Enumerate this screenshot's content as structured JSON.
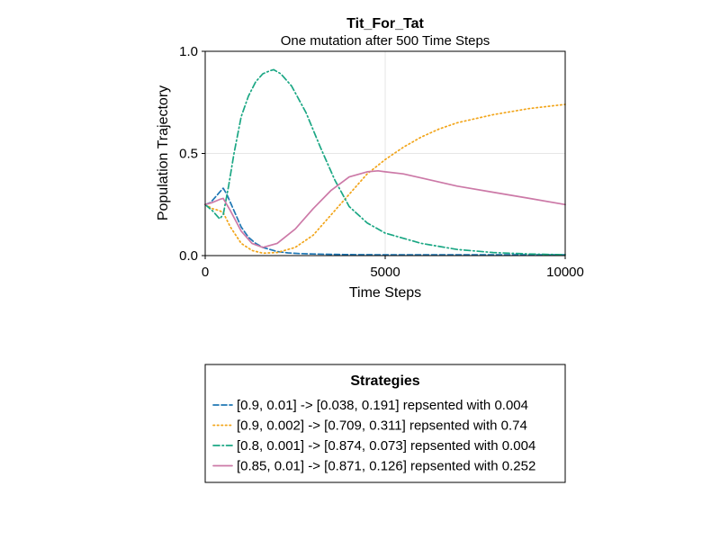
{
  "chart_data": {
    "type": "line",
    "title": "Tit_For_Tat",
    "subtitle": "One mutation after 500 Time Steps",
    "xlabel": "Time Steps",
    "ylabel": "Population Trajectory",
    "xlim": [
      0,
      10000
    ],
    "ylim": [
      0,
      1.0
    ],
    "xticks": [
      0,
      5000,
      10000
    ],
    "xtick_labels": [
      "0",
      "5000",
      "10000"
    ],
    "yticks": [
      0,
      0.5,
      1.0
    ],
    "ytick_labels": [
      "0.0",
      "0.5",
      "1.0"
    ],
    "grid": true,
    "legend": {
      "title": "Strategies",
      "placement": "below"
    },
    "series": [
      {
        "name": "[0.9, 0.01] -> [0.038, 0.191] repsented with 0.004",
        "color": "#1f77b4",
        "dash": "dash",
        "x": [
          0,
          150,
          300,
          400,
          500,
          600,
          700,
          800,
          1000,
          1200,
          1400,
          1600,
          1800,
          2000,
          2300,
          2600,
          3000,
          3500,
          4000,
          5000,
          6000,
          7000,
          8000,
          9000,
          10000
        ],
        "y": [
          0.25,
          0.26,
          0.29,
          0.31,
          0.33,
          0.3,
          0.26,
          0.22,
          0.14,
          0.09,
          0.06,
          0.04,
          0.03,
          0.02,
          0.013,
          0.01,
          0.008,
          0.006,
          0.005,
          0.004,
          0.004,
          0.004,
          0.004,
          0.004,
          0.004
        ]
      },
      {
        "name": "[0.9, 0.002] -> [0.709, 0.311] repsented with 0.74",
        "color": "#f2a51a",
        "dash": "dot",
        "x": [
          0,
          200,
          400,
          500,
          700,
          1000,
          1300,
          1600,
          2000,
          2500,
          3000,
          3500,
          4000,
          4500,
          5000,
          5500,
          6000,
          6500,
          7000,
          8000,
          9000,
          10000
        ],
        "y": [
          0.25,
          0.23,
          0.22,
          0.21,
          0.14,
          0.06,
          0.025,
          0.012,
          0.015,
          0.04,
          0.1,
          0.2,
          0.3,
          0.4,
          0.47,
          0.53,
          0.58,
          0.62,
          0.65,
          0.69,
          0.72,
          0.74
        ]
      },
      {
        "name": "[0.8, 0.001] -> [0.874, 0.073] repsented with 0.004",
        "color": "#1ba784",
        "dash": "dashdot",
        "x": [
          0,
          200,
          400,
          500,
          650,
          800,
          1000,
          1200,
          1400,
          1600,
          1800,
          1900,
          2100,
          2400,
          2800,
          3200,
          3600,
          4000,
          4500,
          5000,
          6000,
          7000,
          8000,
          9000,
          10000
        ],
        "y": [
          0.25,
          0.22,
          0.18,
          0.2,
          0.34,
          0.5,
          0.68,
          0.78,
          0.85,
          0.89,
          0.905,
          0.91,
          0.89,
          0.83,
          0.7,
          0.53,
          0.37,
          0.24,
          0.16,
          0.11,
          0.06,
          0.03,
          0.015,
          0.008,
          0.004
        ]
      },
      {
        "name": "[0.85, 0.01] -> [0.871, 0.126] repsented with 0.252",
        "color": "#cc79a7",
        "dash": "solid",
        "x": [
          0,
          200,
          400,
          500,
          700,
          1000,
          1300,
          1600,
          2000,
          2500,
          3000,
          3500,
          4000,
          4500,
          4800,
          5000,
          5500,
          6000,
          7000,
          8000,
          9000,
          10000
        ],
        "y": [
          0.25,
          0.26,
          0.275,
          0.28,
          0.22,
          0.12,
          0.06,
          0.04,
          0.06,
          0.13,
          0.23,
          0.32,
          0.385,
          0.41,
          0.415,
          0.41,
          0.4,
          0.38,
          0.34,
          0.31,
          0.28,
          0.25
        ]
      }
    ]
  }
}
